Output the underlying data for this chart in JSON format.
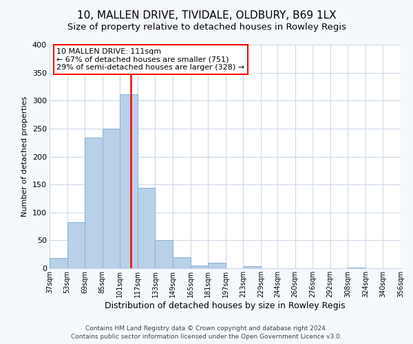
{
  "title": "10, MALLEN DRIVE, TIVIDALE, OLDBURY, B69 1LX",
  "subtitle": "Size of property relative to detached houses in Rowley Regis",
  "xlabel": "Distribution of detached houses by size in Rowley Regis",
  "ylabel": "Number of detached properties",
  "bar_color": "#b8d0e8",
  "bar_edge_color": "#8ab0d0",
  "vline_x": 111,
  "vline_color": "red",
  "annotation_title": "10 MALLEN DRIVE: 111sqm",
  "annotation_line1": "← 67% of detached houses are smaller (751)",
  "annotation_line2": "29% of semi-detached houses are larger (328) →",
  "annotation_box_facecolor": "white",
  "annotation_box_edgecolor": "red",
  "bins": [
    37,
    53,
    69,
    85,
    101,
    117,
    133,
    149,
    165,
    181,
    197,
    213,
    229,
    244,
    260,
    276,
    292,
    308,
    324,
    340,
    356
  ],
  "heights": [
    18,
    83,
    234,
    250,
    311,
    144,
    50,
    20,
    5,
    10,
    0,
    4,
    0,
    0,
    0,
    0,
    0,
    1,
    0,
    0
  ],
  "ylim": [
    0,
    400
  ],
  "yticks": [
    0,
    50,
    100,
    150,
    200,
    250,
    300,
    350,
    400
  ],
  "footer1": "Contains HM Land Registry data © Crown copyright and database right 2024.",
  "footer2": "Contains public sector information licensed under the Open Government Licence v3.0.",
  "background_color": "#f5f8fc",
  "plot_bg_color": "#ffffff",
  "grid_color": "#ccd9e8",
  "tick_labels": [
    "37sqm",
    "53sqm",
    "69sqm",
    "85sqm",
    "101sqm",
    "117sqm",
    "133sqm",
    "149sqm",
    "165sqm",
    "181sqm",
    "197sqm",
    "213sqm",
    "229sqm",
    "244sqm",
    "260sqm",
    "276sqm",
    "292sqm",
    "308sqm",
    "324sqm",
    "340sqm",
    "356sqm"
  ]
}
